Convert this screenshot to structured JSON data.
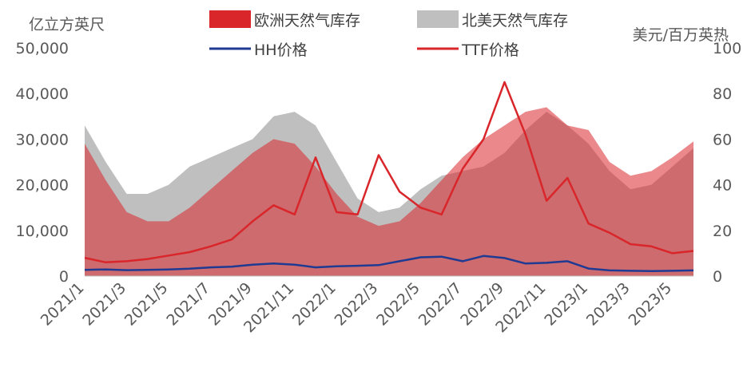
{
  "chart_data": {
    "type": "area+line (dual axis)",
    "left_axis": {
      "label": "亿立方英尺",
      "ylim": [
        0,
        50000
      ],
      "ticks": [
        "0",
        "10,000",
        "20,000",
        "30,000",
        "40,000",
        "50,000"
      ]
    },
    "right_axis": {
      "label": "美元/百万英热",
      "ylim": [
        0,
        100
      ],
      "ticks": [
        "0",
        "20",
        "40",
        "60",
        "80",
        "100"
      ]
    },
    "x_axis": {
      "ticks": [
        "2021/1",
        "2021/3",
        "2021/5",
        "2021/7",
        "2021/9",
        "2021/11",
        "2022/1",
        "2022/3",
        "2022/5",
        "2022/7",
        "2022/9",
        "2022/11",
        "2023/1",
        "2023/3",
        "2023/5"
      ]
    },
    "legend": {
      "placement": "top",
      "items": [
        {
          "key": "eu",
          "label": "欧洲天然气库存",
          "kind": "area",
          "color": "#d9262b"
        },
        {
          "key": "na",
          "label": "北美天然气库存",
          "kind": "area",
          "color": "#bfbfbf"
        },
        {
          "key": "hh",
          "label": "HH价格",
          "kind": "line",
          "color": "#1f3a93"
        },
        {
          "key": "ttf",
          "label": "TTF价格",
          "kind": "line",
          "color": "#d9262b"
        }
      ]
    },
    "x": [
      "2021-01",
      "2021-02",
      "2021-03",
      "2021-04",
      "2021-05",
      "2021-06",
      "2021-07",
      "2021-08",
      "2021-09",
      "2021-10",
      "2021-11",
      "2021-12",
      "2022-01",
      "2022-02",
      "2022-03",
      "2022-04",
      "2022-05",
      "2022-06",
      "2022-07",
      "2022-08",
      "2022-09",
      "2022-10",
      "2022-11",
      "2022-12",
      "2023-01",
      "2023-02",
      "2023-03",
      "2023-04",
      "2023-05",
      "2023-06"
    ],
    "series": [
      {
        "key": "eu",
        "axis": "left",
        "values": [
          29000,
          21000,
          14000,
          12000,
          12000,
          15000,
          19000,
          23000,
          27000,
          30000,
          29000,
          24000,
          18000,
          13000,
          11000,
          12000,
          16000,
          21000,
          26000,
          30000,
          33000,
          36000,
          37000,
          33000,
          32000,
          25000,
          22000,
          23000,
          26000,
          29500
        ]
      },
      {
        "key": "na",
        "axis": "left",
        "values": [
          33000,
          25000,
          18000,
          18000,
          20000,
          24000,
          26000,
          28000,
          30000,
          35000,
          36000,
          33000,
          25000,
          17000,
          14000,
          15000,
          19000,
          22000,
          23000,
          24000,
          27000,
          32000,
          36000,
          33000,
          29000,
          23000,
          19000,
          20000,
          24000,
          28000
        ]
      },
      {
        "key": "hh",
        "axis": "right",
        "values": [
          2.7,
          2.9,
          2.6,
          2.7,
          2.9,
          3.2,
          3.8,
          4.1,
          5.0,
          5.5,
          5.0,
          3.8,
          4.3,
          4.5,
          4.8,
          6.5,
          8.2,
          8.5,
          6.5,
          8.8,
          7.9,
          5.5,
          5.8,
          6.5,
          3.3,
          2.5,
          2.3,
          2.2,
          2.3,
          2.5
        ]
      },
      {
        "key": "ttf",
        "axis": "right",
        "values": [
          8.0,
          6.0,
          6.5,
          7.5,
          9.0,
          10.5,
          13.0,
          16.0,
          24.0,
          31.0,
          27.0,
          52.0,
          28.0,
          27.0,
          53.0,
          37.0,
          30.0,
          27.0,
          47.0,
          60.0,
          85.0,
          62.0,
          33.0,
          43.0,
          23.0,
          19.0,
          14.0,
          13.0,
          10.0,
          11.0
        ]
      }
    ]
  }
}
